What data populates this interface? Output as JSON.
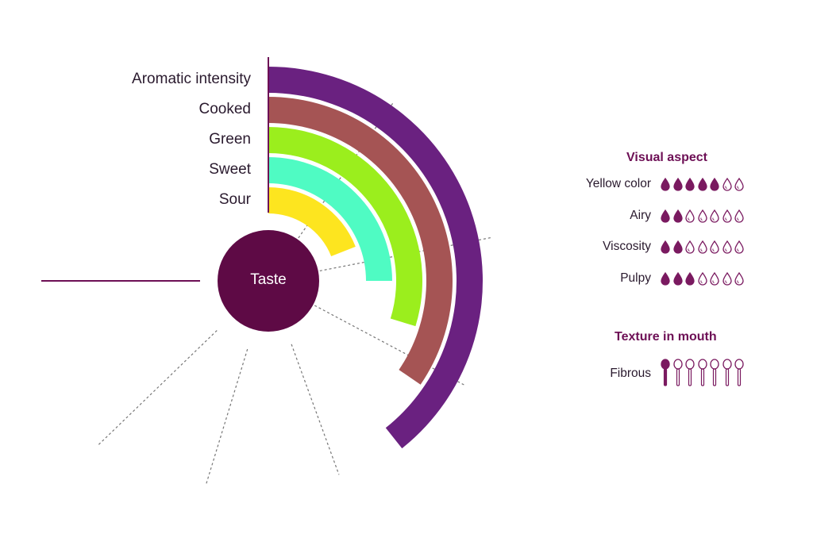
{
  "chart_data": {
    "type": "radial-bar",
    "center_label": "Taste",
    "categories": [
      "Aromatic intensity",
      "Cooked",
      "Green",
      "Sweet",
      "Sour"
    ],
    "values": [
      6.6,
      5.8,
      5.0,
      4.2,
      3.2
    ],
    "scale_max": 7,
    "colors": [
      "#6a2180",
      "#a55454",
      "#9bee1d",
      "#4ffbc3",
      "#fde51f"
    ]
  },
  "visual_aspect": {
    "title": "Visual aspect",
    "items": [
      {
        "label": "Yellow color",
        "filled": 5,
        "total": 7
      },
      {
        "label": "Airy",
        "filled": 2,
        "total": 7
      },
      {
        "label": "Viscosity",
        "filled": 2,
        "total": 7
      },
      {
        "label": "Pulpy",
        "filled": 3,
        "total": 7
      }
    ]
  },
  "texture": {
    "title": "Texture in mouth",
    "items": [
      {
        "label": "Fibrous",
        "filled": 1,
        "total": 7
      }
    ]
  },
  "colors": {
    "accent": "#6d0f55",
    "taste_circle": "#5e0a45",
    "drop": "#7a1a60"
  },
  "icons": {
    "scale_drop": "drop-icon",
    "scale_spoon": "spoon-icon"
  }
}
